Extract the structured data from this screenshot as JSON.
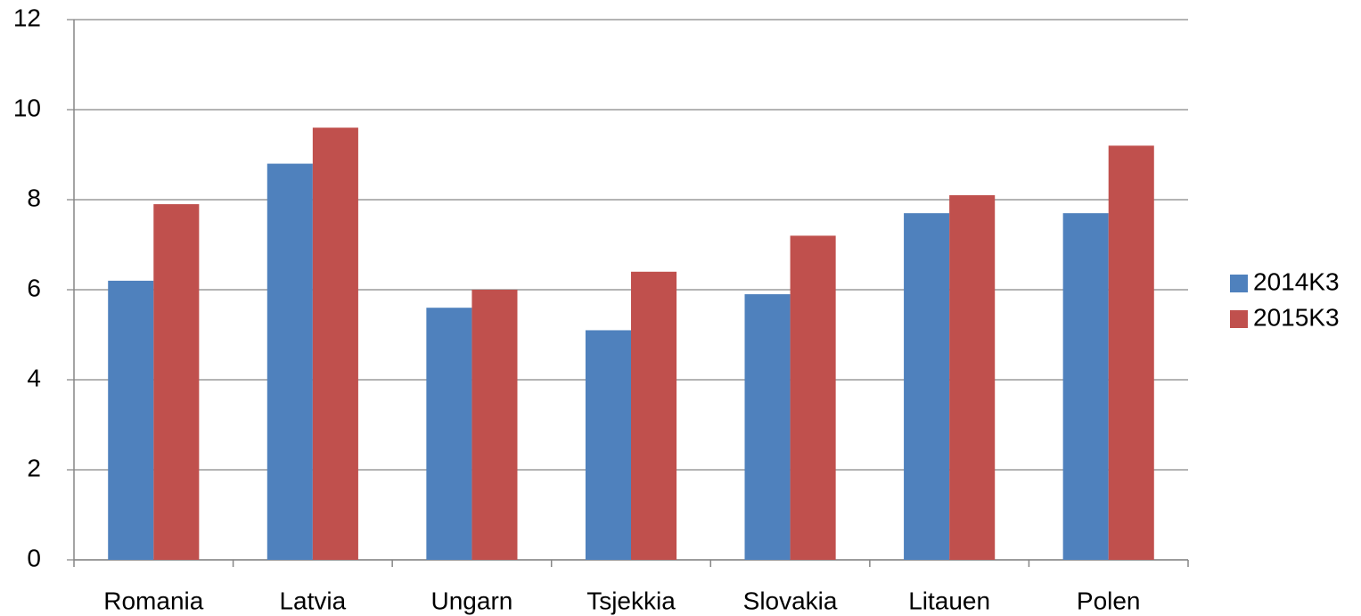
{
  "chart_data": {
    "type": "bar",
    "categories": [
      "Romania",
      "Latvia",
      "Ungarn",
      "Tsjekkia",
      "Slovakia",
      "Litauen",
      "Polen"
    ],
    "series": [
      {
        "name": "2014K3",
        "color": "#4f81bd",
        "values": [
          6.2,
          8.8,
          5.6,
          5.1,
          5.9,
          7.7,
          7.7
        ]
      },
      {
        "name": "2015K3",
        "color": "#c0504d",
        "values": [
          7.9,
          9.6,
          6.0,
          6.4,
          7.2,
          8.1,
          9.2
        ]
      }
    ],
    "ylim": [
      0,
      12
    ],
    "yticks": [
      0,
      2,
      4,
      6,
      8,
      10,
      12
    ],
    "grid": true,
    "legend": "right"
  }
}
